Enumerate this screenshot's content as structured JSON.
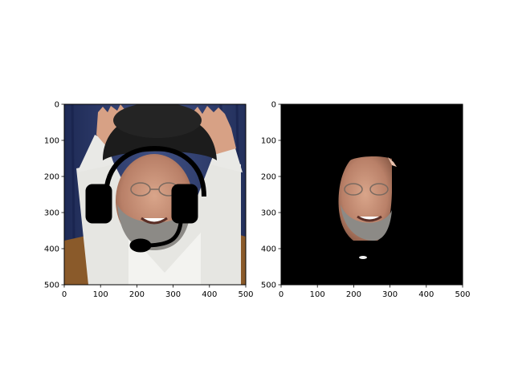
{
  "chart_data": [
    {
      "type": "image",
      "title": "",
      "xlabel": "",
      "ylabel": "",
      "xlim": [
        0,
        500
      ],
      "ylim": [
        500,
        0
      ],
      "xticks": [
        0,
        100,
        200,
        300,
        400,
        500
      ],
      "yticks": [
        0,
        100,
        200,
        300,
        400,
        500
      ],
      "content": "photo of a smiling man in a black turban with hands raised, with a black headset drawn over his head",
      "background_color": "#3a4a78"
    },
    {
      "type": "image",
      "title": "",
      "xlabel": "",
      "ylabel": "",
      "xlim": [
        0,
        500
      ],
      "ylim": [
        500,
        0
      ],
      "xticks": [
        0,
        100,
        200,
        300,
        400,
        500
      ],
      "yticks": [
        0,
        100,
        200,
        300,
        400,
        500
      ],
      "content": "segmented face region on a black background",
      "background_color": "#000000"
    }
  ]
}
